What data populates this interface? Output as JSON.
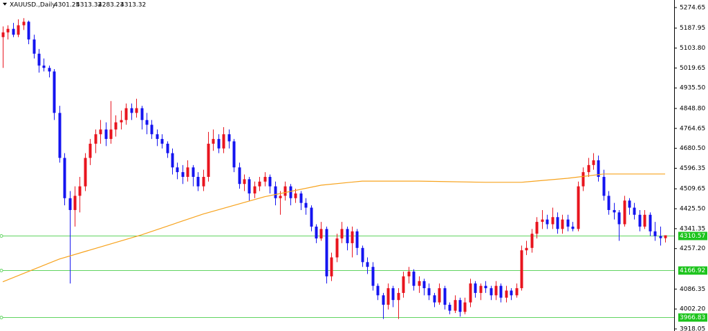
{
  "chart_data": {
    "type": "candlestick",
    "symbol": "XAUUSD.,Daily",
    "up_color": "#e8141e",
    "down_color": "#1414f0",
    "ylim": [
      3909.3,
      5306.7
    ],
    "yticks": [
      5274.65,
      5187.95,
      {
        "value": 5103.8,
        "label": "5103.80"
      },
      5019.65,
      {
        "value": 4935.5,
        "label": "4935.50"
      },
      {
        "value": 4848.8,
        "label": "4848.80"
      },
      4764.65,
      {
        "value": 4680.5,
        "label": "4680.50"
      },
      4596.35,
      4509.65,
      {
        "value": 4425.5,
        "label": "4425.50"
      },
      4341.35,
      {
        "value": 4257.2,
        "label": "4257.20"
      },
      4086.35,
      {
        "value": 4002.2,
        "label": "4002.20"
      },
      3918.05
    ],
    "levels": [
      4310.57,
      4166.92,
      3966.83
    ],
    "level_color": "#5fd35f",
    "level_label_color": "#1cc41c",
    "ma": {
      "color": "#f7a21b",
      "x": [
        0,
        11,
        27,
        39,
        51,
        62,
        70,
        81,
        94,
        101,
        110,
        117,
        129
      ],
      "values": [
        4117,
        4213,
        4315,
        4403,
        4476,
        4525,
        4542,
        4542,
        4537,
        4537,
        4554,
        4572,
        4572
      ]
    },
    "candles": [
      [
        5150,
        5195,
        5020,
        5170
      ],
      [
        5170,
        5200,
        5140,
        5185
      ],
      [
        5185,
        5210,
        5150,
        5160
      ],
      [
        5160,
        5225,
        5150,
        5200
      ],
      [
        5200,
        5230,
        5180,
        5215
      ],
      [
        5215,
        5220,
        5120,
        5140
      ],
      [
        5140,
        5160,
        5060,
        5080
      ],
      [
        5080,
        5100,
        5000,
        5030
      ],
      [
        5030,
        5060,
        5005,
        5020
      ],
      [
        5020,
        5030,
        4980,
        5005
      ],
      [
        5005,
        5015,
        4800,
        4830
      ],
      [
        4830,
        4860,
        4620,
        4640
      ],
      [
        4640,
        4660,
        4440,
        4470
      ],
      [
        4470,
        4500,
        4110,
        4420
      ],
      [
        4420,
        4520,
        4350,
        4480
      ],
      [
        4480,
        4560,
        4410,
        4520
      ],
      [
        4520,
        4660,
        4500,
        4640
      ],
      [
        4640,
        4720,
        4610,
        4700
      ],
      [
        4700,
        4760,
        4660,
        4740
      ],
      [
        4740,
        4800,
        4700,
        4760
      ],
      [
        4760,
        4790,
        4690,
        4720
      ],
      [
        4720,
        4880,
        4700,
        4760
      ],
      [
        4760,
        4820,
        4730,
        4790
      ],
      [
        4790,
        4840,
        4760,
        4800
      ],
      [
        4800,
        4870,
        4780,
        4850
      ],
      [
        4850,
        4870,
        4800,
        4830
      ],
      [
        4830,
        4890,
        4810,
        4850
      ],
      [
        4850,
        4860,
        4760,
        4800
      ],
      [
        4800,
        4830,
        4740,
        4780
      ],
      [
        4780,
        4800,
        4720,
        4740
      ],
      [
        4740,
        4760,
        4690,
        4720
      ],
      [
        4720,
        4740,
        4680,
        4700
      ],
      [
        4700,
        4710,
        4640,
        4660
      ],
      [
        4660,
        4680,
        4570,
        4600
      ],
      [
        4600,
        4620,
        4550,
        4580
      ],
      [
        4580,
        4610,
        4530,
        4560
      ],
      [
        4560,
        4630,
        4540,
        4600
      ],
      [
        4600,
        4610,
        4520,
        4560
      ],
      [
        4560,
        4580,
        4500,
        4520
      ],
      [
        4520,
        4590,
        4500,
        4560
      ],
      [
        4560,
        4750,
        4540,
        4700
      ],
      [
        4700,
        4760,
        4670,
        4720
      ],
      [
        4720,
        4740,
        4660,
        4680
      ],
      [
        4680,
        4770,
        4660,
        4740
      ],
      [
        4740,
        4760,
        4680,
        4710
      ],
      [
        4710,
        4720,
        4580,
        4600
      ],
      [
        4600,
        4620,
        4510,
        4530
      ],
      [
        4530,
        4570,
        4500,
        4550
      ],
      [
        4550,
        4560,
        4460,
        4490
      ],
      [
        4490,
        4540,
        4470,
        4520
      ],
      [
        4520,
        4560,
        4500,
        4540
      ],
      [
        4540,
        4580,
        4520,
        4560
      ],
      [
        4560,
        4570,
        4490,
        4520
      ],
      [
        4520,
        4540,
        4440,
        4470
      ],
      [
        4470,
        4500,
        4400,
        4480
      ],
      [
        4480,
        4540,
        4460,
        4520
      ],
      [
        4520,
        4530,
        4440,
        4470
      ],
      [
        4470,
        4510,
        4450,
        4490
      ],
      [
        4490,
        4500,
        4420,
        4450
      ],
      [
        4450,
        4470,
        4400,
        4430
      ],
      [
        4430,
        4440,
        4330,
        4350
      ],
      [
        4350,
        4360,
        4280,
        4300
      ],
      [
        4300,
        4370,
        4290,
        4340
      ],
      [
        4340,
        4350,
        4110,
        4140
      ],
      [
        4140,
        4240,
        4120,
        4220
      ],
      [
        4220,
        4320,
        4200,
        4300
      ],
      [
        4300,
        4370,
        4280,
        4340
      ],
      [
        4340,
        4350,
        4250,
        4280
      ],
      [
        4280,
        4350,
        4220,
        4330
      ],
      [
        4330,
        4340,
        4230,
        4260
      ],
      [
        4260,
        4270,
        4180,
        4200
      ],
      [
        4200,
        4220,
        4150,
        4180
      ],
      [
        4180,
        4200,
        4080,
        4100
      ],
      [
        4100,
        4110,
        4040,
        4060
      ],
      [
        4060,
        4070,
        3960,
        4020
      ],
      [
        4020,
        4110,
        4000,
        4090
      ],
      [
        4090,
        4100,
        4010,
        4040
      ],
      [
        4040,
        4090,
        3960,
        4070
      ],
      [
        4070,
        4160,
        4050,
        4140
      ],
      [
        4140,
        4180,
        4110,
        4160
      ],
      [
        4160,
        4170,
        4080,
        4100
      ],
      [
        4100,
        4140,
        4070,
        4120
      ],
      [
        4120,
        4130,
        4060,
        4090
      ],
      [
        4090,
        4110,
        4040,
        4060
      ],
      [
        4060,
        4070,
        4010,
        4030
      ],
      [
        4030,
        4110,
        4020,
        4090
      ],
      [
        4090,
        4100,
        4000,
        4020
      ],
      [
        4020,
        4030,
        3980,
        3995
      ],
      [
        3995,
        4060,
        3985,
        4040
      ],
      [
        4040,
        4050,
        3970,
        3990
      ],
      [
        3990,
        4050,
        3980,
        4030
      ],
      [
        4030,
        4130,
        4010,
        4110
      ],
      [
        4110,
        4120,
        4050,
        4070
      ],
      [
        4070,
        4110,
        4040,
        4100
      ],
      [
        4100,
        4120,
        4070,
        4090
      ],
      [
        4090,
        4100,
        4040,
        4060
      ],
      [
        4060,
        4120,
        4040,
        4100
      ],
      [
        4100,
        4110,
        4030,
        4050
      ],
      [
        4050,
        4100,
        4030,
        4080
      ],
      [
        4080,
        4090,
        4040,
        4060
      ],
      [
        4060,
        4110,
        4050,
        4090
      ],
      [
        4090,
        4270,
        4080,
        4250
      ],
      [
        4250,
        4290,
        4230,
        4260
      ],
      [
        4260,
        4340,
        4240,
        4320
      ],
      [
        4320,
        4390,
        4300,
        4370
      ],
      [
        4370,
        4420,
        4340,
        4380
      ],
      [
        4380,
        4400,
        4340,
        4360
      ],
      [
        4360,
        4430,
        4340,
        4390
      ],
      [
        4390,
        4410,
        4320,
        4340
      ],
      [
        4340,
        4400,
        4320,
        4380
      ],
      [
        4380,
        4400,
        4330,
        4350
      ],
      [
        4350,
        4370,
        4330,
        4340
      ],
      [
        4340,
        4540,
        4330,
        4520
      ],
      [
        4520,
        4600,
        4500,
        4580
      ],
      [
        4580,
        4640,
        4560,
        4610
      ],
      [
        4610,
        4660,
        4590,
        4630
      ],
      [
        4630,
        4650,
        4540,
        4560
      ],
      [
        4560,
        4590,
        4460,
        4480
      ],
      [
        4480,
        4500,
        4400,
        4420
      ],
      [
        4420,
        4450,
        4380,
        4410
      ],
      [
        4410,
        4420,
        4290,
        4360
      ],
      [
        4360,
        4480,
        4350,
        4460
      ],
      [
        4460,
        4470,
        4400,
        4430
      ],
      [
        4430,
        4450,
        4380,
        4400
      ],
      [
        4400,
        4420,
        4330,
        4350
      ],
      [
        4350,
        4420,
        4340,
        4400
      ],
      [
        4400,
        4410,
        4310,
        4330
      ],
      [
        4330,
        4370,
        4290,
        4310
      ],
      [
        4310,
        4350,
        4270,
        4301.25
      ],
      [
        4301.25,
        4313.32,
        4283.23,
        4313.32
      ]
    ]
  }
}
